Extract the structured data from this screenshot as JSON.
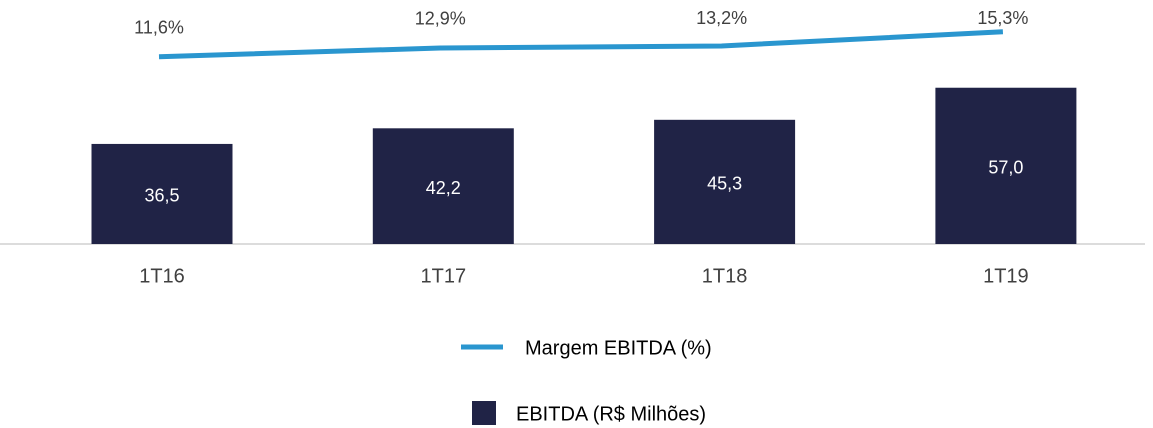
{
  "chart_data": {
    "type": "combo",
    "categories": [
      "1T16",
      "1T17",
      "1T18",
      "1T19"
    ],
    "ylim": [
      0,
      89
    ],
    "y2lim": [
      -16.1,
      20
    ],
    "series": [
      {
        "name": "Margem EBITDA (%)",
        "type": "line",
        "axis": "y2",
        "color": "#2a96cf",
        "values": [
          11.6,
          12.9,
          13.2,
          15.3
        ],
        "value_labels": [
          "11,6%",
          "12,9%",
          "13,2%",
          "15,3%"
        ]
      },
      {
        "name": "EBITDA (R$ Milhões)",
        "type": "bar",
        "color": "#202346",
        "values": [
          36.5,
          42.2,
          45.3,
          57.0
        ],
        "value_labels": [
          "36,5",
          "42,2",
          "45,3",
          "57,0"
        ]
      }
    ]
  }
}
